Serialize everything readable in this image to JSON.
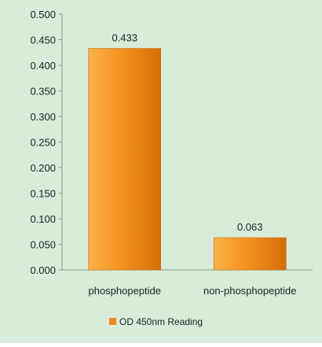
{
  "chart_data": {
    "type": "bar",
    "categories": [
      "phosphopeptide",
      "non-phosphopeptide"
    ],
    "series": [
      {
        "name": "OD 450nm Reading",
        "values": [
          0.433,
          0.063
        ]
      }
    ],
    "data_labels": [
      "0.433",
      "0.063"
    ],
    "y_ticks": [
      "0.000",
      "0.050",
      "0.100",
      "0.150",
      "0.200",
      "0.250",
      "0.300",
      "0.350",
      "0.400",
      "0.450",
      "0.500"
    ],
    "ylim": [
      0,
      0.5
    ],
    "legend_position": "bottom",
    "grid": false,
    "colors": {
      "background": "#d8ecd9",
      "bar_light": "#fbb24a",
      "bar_mid": "#f5921e",
      "bar_dark": "#d66e08",
      "legend_swatch": "#f08a1c"
    }
  }
}
